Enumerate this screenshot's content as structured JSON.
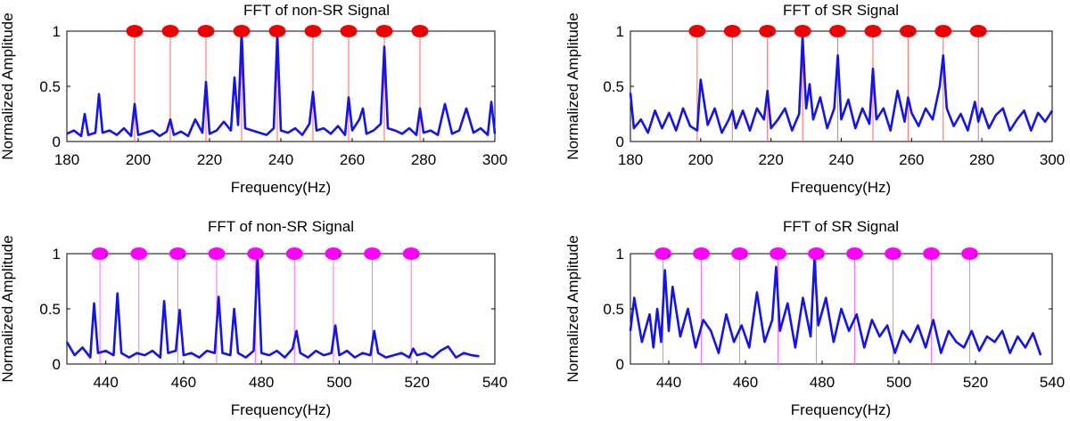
{
  "figure": {
    "layout": "2x2 grid of FFT spectrum plots"
  },
  "chart_data": [
    {
      "type": "line",
      "title": "FFT of non-SR Signal",
      "xlabel": "Frequency(Hz)",
      "ylabel": "Normalized Amplitude",
      "xlim": [
        180,
        300
      ],
      "ylim": [
        0,
        1
      ],
      "xticks": [
        "180",
        "200",
        "220",
        "240",
        "260",
        "280",
        "300"
      ],
      "xtick_values": [
        180,
        200,
        220,
        240,
        260,
        280,
        300
      ],
      "yticks": [
        "0",
        "0.5",
        "1"
      ],
      "ytick_values": [
        0,
        0.5,
        1
      ],
      "series": [
        {
          "name": "spectrum",
          "color": "#1414e6",
          "x": [
            180,
            182,
            184,
            185,
            186,
            188,
            189,
            190,
            192,
            194,
            196,
            198,
            199,
            200,
            202,
            204,
            206,
            208,
            209,
            210,
            212,
            214,
            216,
            218,
            219,
            220,
            222,
            224,
            226,
            227,
            228,
            229,
            230,
            232,
            234,
            236,
            238,
            239,
            240,
            242,
            244,
            246,
            248,
            249,
            250,
            252,
            254,
            256,
            258,
            259,
            260,
            262,
            263,
            264,
            266,
            268,
            269,
            270,
            272,
            274,
            276,
            278,
            279,
            280,
            282,
            284,
            286,
            288,
            290,
            292,
            294,
            296,
            298,
            299,
            300
          ],
          "values": [
            0.07,
            0.1,
            0.05,
            0.25,
            0.06,
            0.08,
            0.43,
            0.08,
            0.1,
            0.06,
            0.12,
            0.05,
            0.34,
            0.06,
            0.08,
            0.1,
            0.05,
            0.09,
            0.2,
            0.06,
            0.09,
            0.05,
            0.2,
            0.08,
            0.54,
            0.07,
            0.1,
            0.18,
            0.1,
            0.58,
            0.15,
            1.0,
            0.12,
            0.1,
            0.08,
            0.06,
            0.12,
            0.97,
            0.1,
            0.08,
            0.12,
            0.06,
            0.16,
            0.45,
            0.1,
            0.12,
            0.07,
            0.14,
            0.06,
            0.4,
            0.1,
            0.2,
            0.3,
            0.07,
            0.1,
            0.16,
            0.86,
            0.12,
            0.1,
            0.07,
            0.12,
            0.06,
            0.3,
            0.08,
            0.1,
            0.06,
            0.34,
            0.07,
            0.1,
            0.3,
            0.08,
            0.12,
            0.06,
            0.36,
            0.07
          ]
        }
      ],
      "markers": {
        "color": "#f00000",
        "line_color": "#ff6464",
        "x": [
          199,
          209,
          219,
          229,
          239,
          249,
          259,
          269,
          279
        ],
        "y": 1
      }
    },
    {
      "type": "line",
      "title": "FFT of SR Signal",
      "xlabel": "Frequency(Hz)",
      "ylabel": "Normalized Amplitude",
      "xlim": [
        180,
        300
      ],
      "ylim": [
        0,
        1
      ],
      "xticks": [
        "180",
        "200",
        "220",
        "240",
        "260",
        "280",
        "300"
      ],
      "xtick_values": [
        180,
        200,
        220,
        240,
        260,
        280,
        300
      ],
      "yticks": [
        "0",
        "0.5",
        "1"
      ],
      "ytick_values": [
        0,
        0.5,
        1
      ],
      "series": [
        {
          "name": "spectrum",
          "color": "#1414e6",
          "x": [
            180,
            181,
            183,
            185,
            187,
            189,
            191,
            193,
            195,
            197,
            199,
            200,
            202,
            204,
            206,
            208,
            209,
            210,
            212,
            214,
            216,
            218,
            219,
            220,
            222,
            224,
            226,
            228,
            229,
            230,
            231,
            232,
            234,
            236,
            238,
            239,
            240,
            242,
            244,
            246,
            248,
            249,
            250,
            252,
            254,
            256,
            258,
            259,
            260,
            262,
            264,
            266,
            268,
            269,
            270,
            272,
            274,
            276,
            278,
            279,
            280,
            282,
            284,
            286,
            288,
            290,
            292,
            294,
            296,
            298,
            300
          ],
          "values": [
            0.44,
            0.12,
            0.2,
            0.08,
            0.28,
            0.12,
            0.26,
            0.1,
            0.3,
            0.14,
            0.1,
            0.56,
            0.15,
            0.3,
            0.08,
            0.2,
            0.28,
            0.12,
            0.28,
            0.1,
            0.3,
            0.2,
            0.46,
            0.12,
            0.2,
            0.3,
            0.1,
            0.25,
            0.95,
            0.3,
            0.52,
            0.2,
            0.4,
            0.12,
            0.3,
            0.78,
            0.2,
            0.38,
            0.12,
            0.3,
            0.16,
            0.66,
            0.2,
            0.3,
            0.1,
            0.46,
            0.18,
            0.4,
            0.26,
            0.14,
            0.3,
            0.2,
            0.5,
            0.78,
            0.3,
            0.14,
            0.25,
            0.1,
            0.36,
            0.18,
            0.3,
            0.12,
            0.24,
            0.3,
            0.1,
            0.2,
            0.28,
            0.1,
            0.26,
            0.18,
            0.28
          ]
        }
      ],
      "markers": {
        "color": "#f00000",
        "line_color": "#ff6464",
        "x": [
          199,
          209,
          219,
          229,
          239,
          249,
          259,
          269,
          279
        ],
        "y": 1
      }
    },
    {
      "type": "line",
      "title": "FFT of non-SR Signal",
      "xlabel": "Frequency(Hz)",
      "ylabel": "Normalized Amplitude",
      "xlim": [
        430,
        540
      ],
      "ylim": [
        0,
        1
      ],
      "xticks": [
        "440",
        "460",
        "480",
        "500",
        "520",
        "540"
      ],
      "xtick_values": [
        440,
        460,
        480,
        500,
        520,
        540
      ],
      "yticks": [
        "0",
        "0.5",
        "1"
      ],
      "ytick_values": [
        0,
        0.5,
        1
      ],
      "series": [
        {
          "name": "spectrum",
          "color": "#1414e6",
          "x": [
            430,
            432,
            434,
            436,
            437,
            438,
            440,
            442,
            443,
            444,
            446,
            448,
            450,
            452,
            454,
            455,
            456,
            458,
            459,
            460,
            462,
            464,
            466,
            468,
            469,
            470,
            472,
            473,
            474,
            476,
            478,
            479,
            480,
            482,
            484,
            486,
            488,
            489,
            490,
            492,
            494,
            496,
            498,
            499,
            500,
            502,
            504,
            506,
            508,
            509,
            510,
            512,
            514,
            516,
            518,
            519,
            520,
            522,
            524,
            526,
            528,
            530,
            532,
            534,
            536
          ],
          "values": [
            0.2,
            0.08,
            0.15,
            0.06,
            0.55,
            0.1,
            0.12,
            0.08,
            0.64,
            0.1,
            0.06,
            0.1,
            0.08,
            0.12,
            0.06,
            0.57,
            0.1,
            0.12,
            0.49,
            0.08,
            0.1,
            0.06,
            0.12,
            0.1,
            0.61,
            0.1,
            0.08,
            0.5,
            0.1,
            0.06,
            0.12,
            0.97,
            0.1,
            0.08,
            0.12,
            0.06,
            0.14,
            0.3,
            0.1,
            0.06,
            0.12,
            0.08,
            0.1,
            0.35,
            0.08,
            0.12,
            0.06,
            0.1,
            0.08,
            0.3,
            0.1,
            0.06,
            0.08,
            0.1,
            0.06,
            0.14,
            0.08,
            0.1,
            0.06,
            0.12,
            0.16,
            0.06,
            0.1,
            0.08,
            0.07
          ]
        }
      ],
      "markers": {
        "color": "#ff00ff",
        "line_color": "#ff66ff",
        "x": [
          438.5,
          448.5,
          458.5,
          468.5,
          478.5,
          488.5,
          498.5,
          508.5,
          518.5
        ],
        "y": 1
      }
    },
    {
      "type": "line",
      "title": "FFT of SR Signal",
      "xlabel": "Frequency(Hz)",
      "ylabel": "Normalized Amplitude",
      "xlim": [
        430,
        540
      ],
      "ylim": [
        0,
        1
      ],
      "xticks": [
        "440",
        "460",
        "480",
        "500",
        "520",
        "540"
      ],
      "xtick_values": [
        440,
        460,
        480,
        500,
        520,
        540
      ],
      "yticks": [
        "0",
        "0.5",
        "1"
      ],
      "ytick_values": [
        0,
        0.5,
        1
      ],
      "series": [
        {
          "name": "spectrum",
          "color": "#1414e6",
          "x": [
            430,
            431,
            433,
            435,
            436,
            437,
            438,
            439,
            440,
            441,
            443,
            445,
            447,
            449,
            451,
            453,
            455,
            457,
            459,
            461,
            463,
            465,
            467,
            468,
            469,
            471,
            473,
            475,
            477,
            478,
            479,
            481,
            483,
            485,
            487,
            489,
            491,
            493,
            495,
            497,
            499,
            501,
            503,
            505,
            507,
            509,
            511,
            513,
            515,
            517,
            519,
            521,
            523,
            525,
            527,
            529,
            531,
            533,
            535,
            537
          ],
          "values": [
            0.3,
            0.6,
            0.2,
            0.45,
            0.15,
            0.5,
            0.2,
            0.85,
            0.3,
            0.7,
            0.25,
            0.5,
            0.15,
            0.4,
            0.3,
            0.1,
            0.45,
            0.2,
            0.35,
            0.15,
            0.65,
            0.2,
            0.4,
            0.88,
            0.3,
            0.55,
            0.15,
            0.6,
            0.25,
            0.95,
            0.35,
            0.6,
            0.2,
            0.5,
            0.3,
            0.45,
            0.15,
            0.4,
            0.25,
            0.35,
            0.1,
            0.3,
            0.2,
            0.35,
            0.15,
            0.4,
            0.1,
            0.3,
            0.2,
            0.15,
            0.3,
            0.12,
            0.25,
            0.2,
            0.3,
            0.1,
            0.25,
            0.15,
            0.28,
            0.08
          ]
        }
      ],
      "markers": {
        "color": "#ff00ff",
        "line_color": "#ff66ff",
        "x": [
          438.5,
          448.5,
          458.5,
          468.5,
          478.5,
          488.5,
          498.5,
          508.5,
          518.5
        ],
        "y": 1
      }
    }
  ]
}
